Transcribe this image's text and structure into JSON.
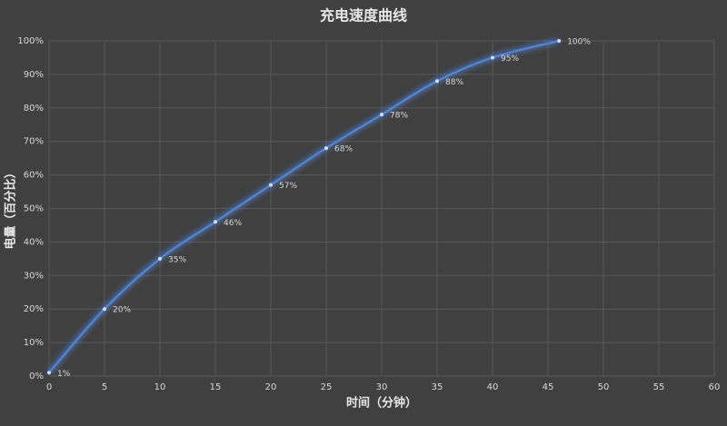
{
  "chart_data": {
    "type": "line",
    "title": "充电速度曲线",
    "x_label": "时间（分钟）",
    "y_label": "电量（百分比）",
    "x": [
      0,
      5,
      10,
      15,
      20,
      25,
      30,
      35,
      40,
      46
    ],
    "values": [
      1,
      20,
      35,
      46,
      57,
      68,
      78,
      88,
      95,
      100
    ],
    "value_labels": [
      "1%",
      "20%",
      "35%",
      "46%",
      "57%",
      "68%",
      "78%",
      "88%",
      "95%",
      "100%"
    ],
    "color": "#4f86dc",
    "xlim": [
      0,
      60
    ],
    "xticks": [
      0,
      5,
      10,
      15,
      20,
      25,
      30,
      35,
      40,
      45,
      50,
      55,
      60
    ],
    "ylim": [
      0,
      100
    ],
    "yticks": [
      {
        "value": 0,
        "label": "0%"
      },
      {
        "value": 10,
        "label": "10%"
      },
      {
        "value": 20,
        "label": "20%"
      },
      {
        "value": 30,
        "label": "30%"
      },
      {
        "value": 40,
        "label": "40%"
      },
      {
        "value": 50,
        "label": "50%"
      },
      {
        "value": 60,
        "label": "60%"
      },
      {
        "value": 70,
        "label": "70%"
      },
      {
        "value": 80,
        "label": "80%"
      },
      {
        "value": 90,
        "label": "90%"
      },
      {
        "value": 100,
        "label": "100%"
      }
    ],
    "grid": true
  }
}
